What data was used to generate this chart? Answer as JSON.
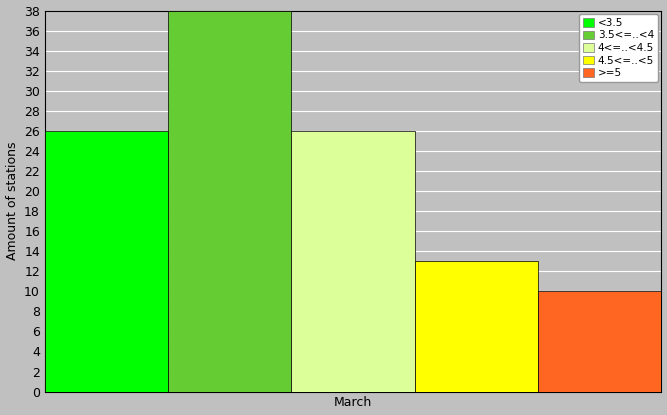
{
  "bars": [
    {
      "label": "<3.5",
      "value": 26,
      "color": "#00ff00"
    },
    {
      "label": "3.5<=..<4",
      "value": 38,
      "color": "#66cc33"
    },
    {
      "label": "4<=..<4.5",
      "value": 26,
      "color": "#ddff99"
    },
    {
      "label": "4.5<=..<5",
      "value": 13,
      "color": "#ffff00"
    },
    {
      "label": ">=5",
      "value": 10,
      "color": "#ff6622"
    }
  ],
  "legend_colors": [
    "#00ff00",
    "#66cc33",
    "#ddff99",
    "#ffff00",
    "#ff6622"
  ],
  "ylabel": "Amount of stations",
  "xlabel": "March",
  "ylim": [
    0,
    38
  ],
  "yticks": [
    0,
    2,
    4,
    6,
    8,
    10,
    12,
    14,
    16,
    18,
    20,
    22,
    24,
    26,
    28,
    30,
    32,
    34,
    36,
    38
  ],
  "background_color": "#c0c0c0",
  "grid_color": "#ffffff",
  "figwidth": 6.67,
  "figheight": 4.15,
  "dpi": 100
}
